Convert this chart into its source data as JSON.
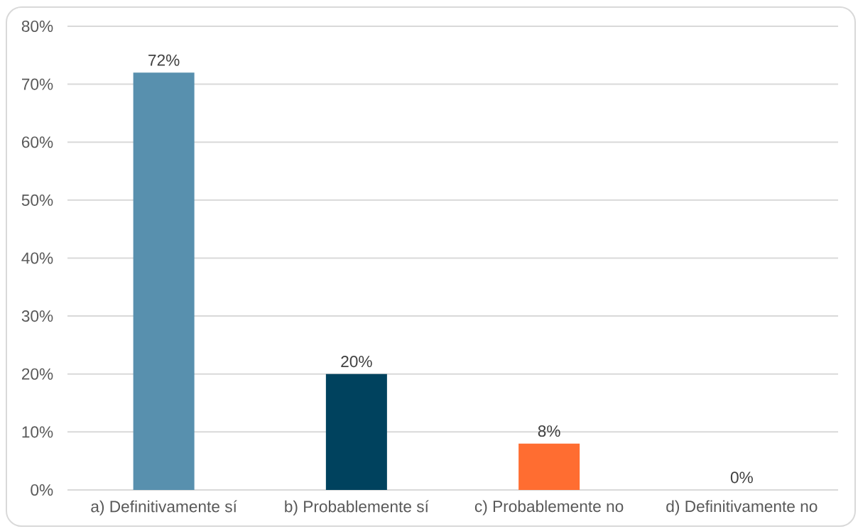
{
  "chart_data": {
    "type": "bar",
    "categories": [
      "a) Definitivamente sí",
      "b) Probablemente sí",
      "c) Probablemente no",
      "d) Definitivamente no"
    ],
    "values": [
      72,
      20,
      8,
      0
    ],
    "colors": [
      "#5890ae",
      "#00425e",
      "#ff6d31",
      "#a5a5a5"
    ],
    "value_labels": [
      "72%",
      "20%",
      "8%",
      "0%"
    ],
    "ylim": [
      0,
      80
    ],
    "yticks": [
      {
        "value": 0,
        "label": "0%"
      },
      {
        "value": 10,
        "label": "10%"
      },
      {
        "value": 20,
        "label": "20%"
      },
      {
        "value": 30,
        "label": "30%"
      },
      {
        "value": 40,
        "label": "40%"
      },
      {
        "value": 50,
        "label": "50%"
      },
      {
        "value": 60,
        "label": "60%"
      },
      {
        "value": 70,
        "label": "70%"
      },
      {
        "value": 80,
        "label": "80%"
      }
    ],
    "grid": "y"
  }
}
